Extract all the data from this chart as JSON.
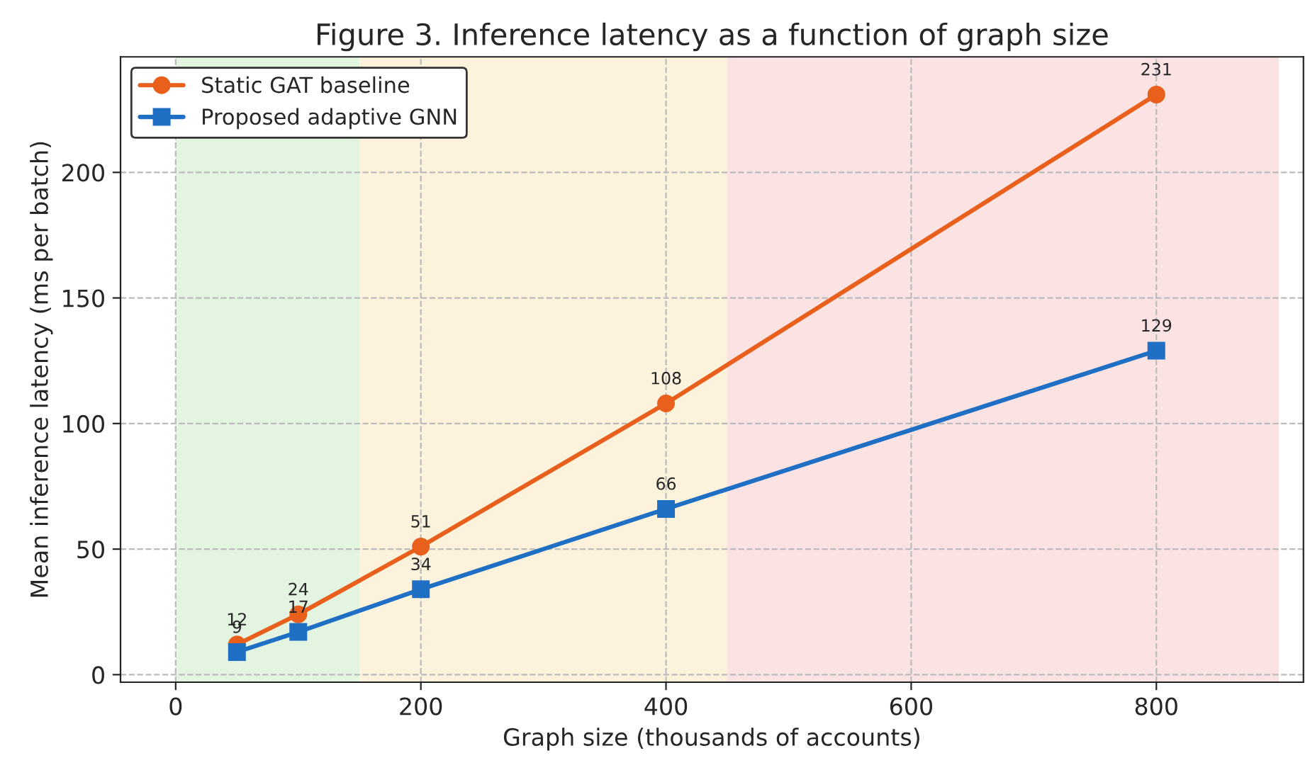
{
  "chart_data": {
    "type": "line",
    "title": "Figure 3. Inference latency as a function of graph size",
    "xlabel": "Graph size (thousands of accounts)",
    "ylabel": "Mean inference latency (ms per batch)",
    "x": [
      50,
      100,
      200,
      400,
      800
    ],
    "series": [
      {
        "name": "Static GAT baseline",
        "color": "#e8601c",
        "marker": "circle",
        "values": [
          12,
          24,
          51,
          108,
          231
        ]
      },
      {
        "name": "Proposed adaptive GNN",
        "color": "#1f6fc5",
        "marker": "square",
        "values": [
          9,
          17,
          34,
          66,
          129
        ]
      }
    ],
    "bands": [
      {
        "axis": "x",
        "from": 0,
        "to": 150,
        "color": "#e3f4e0"
      },
      {
        "axis": "x",
        "from": 150,
        "to": 450,
        "color": "#fdf3dc"
      },
      {
        "axis": "x",
        "from": 450,
        "to": 900,
        "color": "#fbe3e3"
      }
    ],
    "xlim": [
      -45,
      920
    ],
    "xticks": [
      0,
      200,
      400,
      600,
      800
    ],
    "ylim": [
      -3,
      246
    ],
    "yticks": [
      0,
      50,
      100,
      150,
      200
    ],
    "grid": true,
    "legend": "top left",
    "line_style": "solid",
    "data_labels": true
  }
}
